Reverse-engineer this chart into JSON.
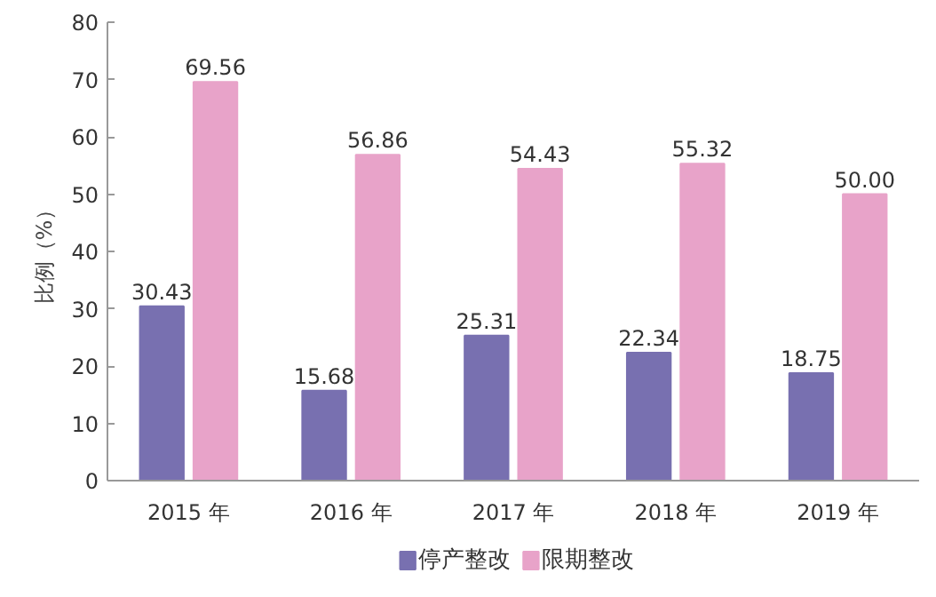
{
  "chart_data": {
    "type": "bar",
    "ylabel": "比例（%）",
    "categories": [
      "2015 年",
      "2016 年",
      "2017 年",
      "2018 年",
      "2019 年"
    ],
    "series": [
      {
        "name": "停产整改",
        "color": "#7870b0",
        "values": [
          30.43,
          15.68,
          25.31,
          22.34,
          18.75
        ]
      },
      {
        "name": "限期整改",
        "color": "#e8a3c9",
        "values": [
          69.56,
          56.86,
          54.43,
          55.32,
          50.0
        ]
      }
    ],
    "value_labels": [
      [
        "30.43",
        "15.68",
        "25.31",
        "22.34",
        "18.75"
      ],
      [
        "69.56",
        "56.86",
        "54.43",
        "55.32",
        "50.00"
      ]
    ],
    "ylim": [
      0,
      80
    ],
    "yticks": [
      0,
      10,
      20,
      30,
      40,
      50,
      60,
      70,
      80
    ],
    "grid": false,
    "legend": "bottom"
  }
}
